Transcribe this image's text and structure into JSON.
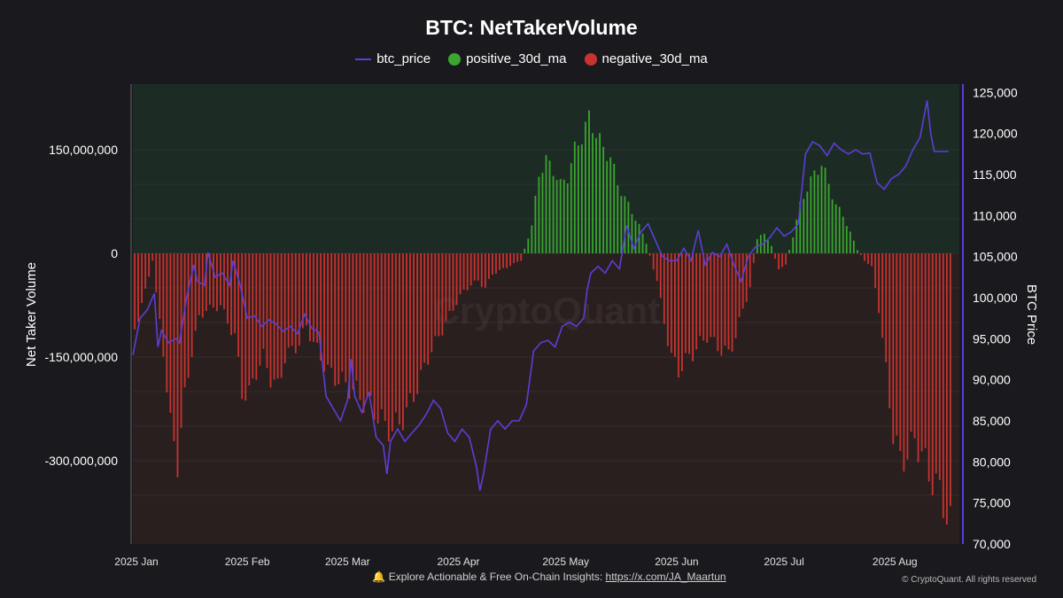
{
  "chart_data": {
    "type": "bar",
    "title": "BTC: NetTakerVolume",
    "ylabel": "Net Taker Volume",
    "y2label": "BTC Price",
    "ylim": [
      -380000000,
      165000000
    ],
    "y2lim": [
      70000,
      126000
    ],
    "y_ticks": [
      "150,000,000",
      "0",
      "-150,000,000",
      "-300,000,000"
    ],
    "y_tick_values": [
      150000000,
      0,
      -150000000,
      -300000000
    ],
    "y2_ticks": [
      "125,000",
      "120,000",
      "115,000",
      "110,000",
      "105,000",
      "100,000",
      "95,000",
      "90,000",
      "85,000",
      "80,000",
      "75,000",
      "70,000"
    ],
    "y2_tick_values": [
      125000,
      120000,
      115000,
      110000,
      105000,
      100000,
      95000,
      90000,
      85000,
      80000,
      75000,
      70000
    ],
    "x_ticks": [
      "2025 Jan",
      "2025 Feb",
      "2025 Mar",
      "2025 Apr",
      "2025 May",
      "2025 Jun",
      "2025 Jul",
      "2025 Aug"
    ],
    "x_tick_days": [
      0,
      31,
      59,
      90,
      120,
      151,
      181,
      212
    ],
    "x_range_days": [
      0,
      231
    ],
    "series": [
      {
        "name": "btc_price",
        "color": "#5b3fd6"
      },
      {
        "name": "positive_30d_ma",
        "color": "#3aa62e"
      },
      {
        "name": "negative_30d_ma",
        "color": "#c8332f"
      }
    ],
    "price_points": [
      [
        0,
        93000
      ],
      [
        2,
        97500
      ],
      [
        4,
        98500
      ],
      [
        6,
        100500
      ],
      [
        7,
        94000
      ],
      [
        8,
        96000
      ],
      [
        10,
        94500
      ],
      [
        12,
        95000
      ],
      [
        13,
        94500
      ],
      [
        15,
        100000
      ],
      [
        17,
        104000
      ],
      [
        18,
        102000
      ],
      [
        20,
        101500
      ],
      [
        21,
        105500
      ],
      [
        23,
        102500
      ],
      [
        25,
        103000
      ],
      [
        27,
        101500
      ],
      [
        28,
        104500
      ],
      [
        30,
        101500
      ],
      [
        32,
        97500
      ],
      [
        34,
        97800
      ],
      [
        36,
        96500
      ],
      [
        38,
        97300
      ],
      [
        40,
        96800
      ],
      [
        42,
        95900
      ],
      [
        44,
        96500
      ],
      [
        46,
        95600
      ],
      [
        48,
        98000
      ],
      [
        50,
        96300
      ],
      [
        52,
        95800
      ],
      [
        54,
        88000
      ],
      [
        56,
        86500
      ],
      [
        58,
        85000
      ],
      [
        60,
        87500
      ],
      [
        61,
        92500
      ],
      [
        62,
        88000
      ],
      [
        64,
        86000
      ],
      [
        66,
        88500
      ],
      [
        68,
        83000
      ],
      [
        70,
        82000
      ],
      [
        71,
        78500
      ],
      [
        72,
        82500
      ],
      [
        74,
        84000
      ],
      [
        76,
        82500
      ],
      [
        78,
        83500
      ],
      [
        80,
        84500
      ],
      [
        82,
        85800
      ],
      [
        84,
        87500
      ],
      [
        86,
        86500
      ],
      [
        88,
        83500
      ],
      [
        90,
        82500
      ],
      [
        92,
        84000
      ],
      [
        94,
        83000
      ],
      [
        96,
        79500
      ],
      [
        97,
        76500
      ],
      [
        98,
        78500
      ],
      [
        100,
        84000
      ],
      [
        102,
        85000
      ],
      [
        104,
        84000
      ],
      [
        106,
        85000
      ],
      [
        108,
        85000
      ],
      [
        110,
        87000
      ],
      [
        112,
        93500
      ],
      [
        114,
        94500
      ],
      [
        116,
        94800
      ],
      [
        118,
        94000
      ],
      [
        120,
        96500
      ],
      [
        122,
        97000
      ],
      [
        124,
        96500
      ],
      [
        126,
        97500
      ],
      [
        127,
        101000
      ],
      [
        128,
        103000
      ],
      [
        130,
        103800
      ],
      [
        132,
        103000
      ],
      [
        134,
        104500
      ],
      [
        136,
        103500
      ],
      [
        138,
        108800
      ],
      [
        140,
        106000
      ],
      [
        142,
        108000
      ],
      [
        144,
        109000
      ],
      [
        146,
        107000
      ],
      [
        148,
        105000
      ],
      [
        150,
        104500
      ],
      [
        152,
        104500
      ],
      [
        154,
        106000
      ],
      [
        156,
        104500
      ],
      [
        158,
        108200
      ],
      [
        160,
        104000
      ],
      [
        162,
        105500
      ],
      [
        164,
        105000
      ],
      [
        166,
        106500
      ],
      [
        168,
        104000
      ],
      [
        170,
        102000
      ],
      [
        172,
        105000
      ],
      [
        174,
        106200
      ],
      [
        176,
        106500
      ],
      [
        178,
        107300
      ],
      [
        180,
        108500
      ],
      [
        182,
        107500
      ],
      [
        184,
        108000
      ],
      [
        186,
        109000
      ],
      [
        188,
        117500
      ],
      [
        190,
        119000
      ],
      [
        192,
        118500
      ],
      [
        194,
        117300
      ],
      [
        196,
        118800
      ],
      [
        198,
        118000
      ],
      [
        200,
        117500
      ],
      [
        202,
        118000
      ],
      [
        204,
        117500
      ],
      [
        206,
        117600
      ],
      [
        208,
        114000
      ],
      [
        210,
        113200
      ],
      [
        212,
        114500
      ],
      [
        214,
        115000
      ],
      [
        216,
        116000
      ],
      [
        218,
        118000
      ],
      [
        220,
        119500
      ],
      [
        222,
        124000
      ],
      [
        223,
        120000
      ],
      [
        224,
        117800
      ],
      [
        226,
        117800
      ],
      [
        228,
        117800
      ]
    ],
    "net_volume_points": [
      [
        0,
        -110000000
      ],
      [
        3,
        -55000000
      ],
      [
        5,
        -10000000
      ],
      [
        6,
        -60000000
      ],
      [
        8,
        -140000000
      ],
      [
        10,
        -250000000
      ],
      [
        12,
        -300000000
      ],
      [
        14,
        -210000000
      ],
      [
        16,
        -140000000
      ],
      [
        18,
        -95000000
      ],
      [
        20,
        -80000000
      ],
      [
        22,
        -80000000
      ],
      [
        24,
        -75000000
      ],
      [
        26,
        -100000000
      ],
      [
        28,
        -120000000
      ],
      [
        30,
        -200000000
      ],
      [
        32,
        -205000000
      ],
      [
        34,
        -170000000
      ],
      [
        36,
        -150000000
      ],
      [
        38,
        -180000000
      ],
      [
        40,
        -195000000
      ],
      [
        42,
        -150000000
      ],
      [
        44,
        -140000000
      ],
      [
        46,
        -130000000
      ],
      [
        48,
        -105000000
      ],
      [
        50,
        -130000000
      ],
      [
        52,
        -150000000
      ],
      [
        54,
        -170000000
      ],
      [
        56,
        -180000000
      ],
      [
        58,
        -185000000
      ],
      [
        60,
        -195000000
      ],
      [
        62,
        -200000000
      ],
      [
        64,
        -215000000
      ],
      [
        66,
        -220000000
      ],
      [
        68,
        -235000000
      ],
      [
        70,
        -250000000
      ],
      [
        72,
        -255000000
      ],
      [
        74,
        -245000000
      ],
      [
        76,
        -230000000
      ],
      [
        78,
        -205000000
      ],
      [
        80,
        -180000000
      ],
      [
        82,
        -150000000
      ],
      [
        84,
        -130000000
      ],
      [
        86,
        -110000000
      ],
      [
        88,
        -90000000
      ],
      [
        90,
        -70000000
      ],
      [
        92,
        -55000000
      ],
      [
        94,
        -45000000
      ],
      [
        96,
        -40000000
      ],
      [
        98,
        -50000000
      ],
      [
        100,
        -30000000
      ],
      [
        102,
        -25000000
      ],
      [
        104,
        -20000000
      ],
      [
        106,
        -15000000
      ],
      [
        108,
        -10000000
      ],
      [
        111,
        40000000
      ],
      [
        113,
        115000000
      ],
      [
        115,
        135000000
      ],
      [
        117,
        120000000
      ],
      [
        119,
        100000000
      ],
      [
        121,
        110000000
      ],
      [
        123,
        150000000
      ],
      [
        125,
        170000000
      ],
      [
        127,
        195000000
      ],
      [
        129,
        175000000
      ],
      [
        131,
        150000000
      ],
      [
        133,
        140000000
      ],
      [
        135,
        100000000
      ],
      [
        137,
        80000000
      ],
      [
        139,
        60000000
      ],
      [
        141,
        40000000
      ],
      [
        143,
        15000000
      ],
      [
        146,
        -40000000
      ],
      [
        148,
        -100000000
      ],
      [
        150,
        -150000000
      ],
      [
        152,
        -170000000
      ],
      [
        154,
        -155000000
      ],
      [
        156,
        -145000000
      ],
      [
        158,
        -130000000
      ],
      [
        160,
        -120000000
      ],
      [
        162,
        -130000000
      ],
      [
        164,
        -140000000
      ],
      [
        166,
        -145000000
      ],
      [
        168,
        -120000000
      ],
      [
        170,
        -80000000
      ],
      [
        172,
        -50000000
      ],
      [
        174,
        20000000
      ],
      [
        176,
        30000000
      ],
      [
        178,
        10000000
      ],
      [
        180,
        -25000000
      ],
      [
        182,
        -15000000
      ],
      [
        184,
        25000000
      ],
      [
        186,
        70000000
      ],
      [
        188,
        95000000
      ],
      [
        190,
        115000000
      ],
      [
        192,
        130000000
      ],
      [
        194,
        100000000
      ],
      [
        196,
        70000000
      ],
      [
        198,
        55000000
      ],
      [
        200,
        30000000
      ],
      [
        202,
        5000000
      ],
      [
        204,
        -10000000
      ],
      [
        206,
        -20000000
      ],
      [
        208,
        -80000000
      ],
      [
        210,
        -170000000
      ],
      [
        212,
        -260000000
      ],
      [
        214,
        -300000000
      ],
      [
        216,
        -290000000
      ],
      [
        218,
        -270000000
      ],
      [
        220,
        -290000000
      ],
      [
        222,
        -320000000
      ],
      [
        224,
        -335000000
      ],
      [
        226,
        -360000000
      ],
      [
        228,
        -395000000
      ]
    ]
  },
  "watermark": "CryptoQuant",
  "footer": {
    "bell_icon": "🔔",
    "cta_text": "Explore Actionable & Free On-Chain Insights: ",
    "link_text": "https://x.com/JA_Maartun",
    "copyright": "© CryptoQuant. All rights reserved"
  }
}
